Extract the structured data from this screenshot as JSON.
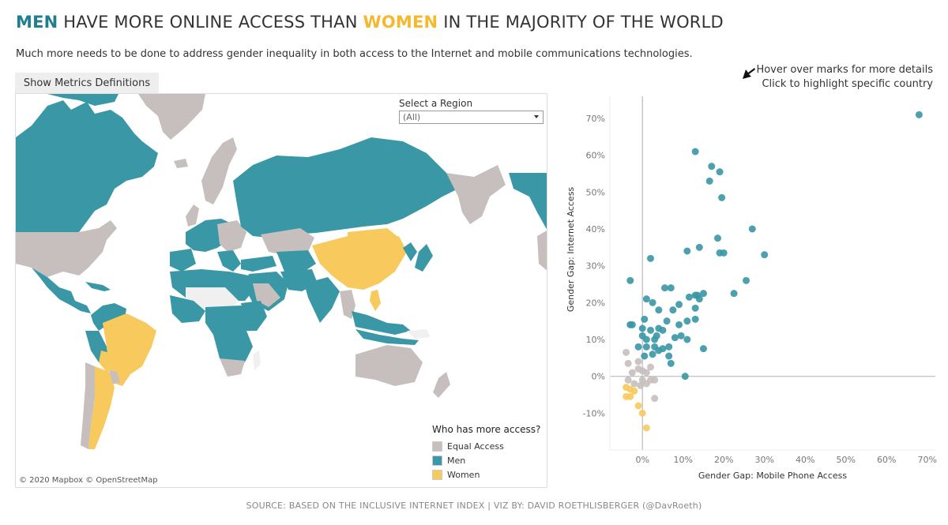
{
  "title": {
    "part1": "MEN",
    "part2": " HAVE MORE ONLINE ACCESS THAN ",
    "part3": "WOMEN",
    "part4": " IN THE MAJORITY OF THE WORLD"
  },
  "subtitle": "Much more needs to be done to address gender inequality in both access to the Internet and mobile communications technologies.",
  "metrics_button": "Show Metrics Definitions",
  "hint": {
    "line1": "Hover over marks for more details",
    "line2": "Click to highlight specific country"
  },
  "region_filter": {
    "label": "Select a Region",
    "value": "(All)"
  },
  "legend": {
    "title": "Who has more access?",
    "items": [
      {
        "label": "Equal Access",
        "color": "#c7bfbd"
      },
      {
        "label": "Men",
        "color": "#3a97a6"
      },
      {
        "label": "Women",
        "color": "#f8c95c"
      }
    ]
  },
  "map_credit": "© 2020 Mapbox  © OpenStreetMap",
  "source": "SOURCE: BASED ON THE INCLUSIVE INTERNET INDEX | VIZ BY: DAVID ROETHLISBERGER (@DavRoeth)",
  "colors": {
    "men": "#3a97a6",
    "women": "#f8c95c",
    "equal": "#c7bfbd",
    "land_nodata": "#f0f0f0"
  },
  "chart_data": {
    "type": "scatter",
    "xlabel": "Gender Gap: Mobile Phone Access",
    "ylabel": "Gender Gap: Internet Access",
    "xlim": [
      -8,
      72
    ],
    "ylim": [
      -20,
      76
    ],
    "xticks": [
      "0%",
      "10%",
      "20%",
      "30%",
      "40%",
      "50%",
      "60%",
      "70%"
    ],
    "xtick_values": [
      0,
      10,
      20,
      30,
      40,
      50,
      60,
      70
    ],
    "yticks": [
      "-10%",
      "0%",
      "10%",
      "20%",
      "30%",
      "40%",
      "50%",
      "60%",
      "70%"
    ],
    "ytick_values": [
      -10,
      0,
      10,
      20,
      30,
      40,
      50,
      60,
      70
    ],
    "series": [
      {
        "name": "Men",
        "color": "#3a97a6",
        "points": [
          [
            68,
            71
          ],
          [
            13,
            61
          ],
          [
            17,
            57
          ],
          [
            19,
            55.5
          ],
          [
            16.5,
            53
          ],
          [
            19.5,
            48.5
          ],
          [
            27,
            40
          ],
          [
            18.5,
            37.5
          ],
          [
            30,
            33
          ],
          [
            19,
            33.5
          ],
          [
            20,
            33.5
          ],
          [
            14,
            35
          ],
          [
            11,
            34
          ],
          [
            2,
            32
          ],
          [
            25.5,
            26
          ],
          [
            -3,
            26
          ],
          [
            22.5,
            22.5
          ],
          [
            13,
            22
          ],
          [
            7,
            24
          ],
          [
            5.5,
            24
          ],
          [
            11.5,
            21.5
          ],
          [
            13.5,
            22
          ],
          [
            14,
            21
          ],
          [
            15,
            22.5
          ],
          [
            9,
            19.5
          ],
          [
            1,
            21
          ],
          [
            2.5,
            20
          ],
          [
            4,
            18
          ],
          [
            0.5,
            15.5
          ],
          [
            7.5,
            18
          ],
          [
            13,
            18.5
          ],
          [
            11,
            15
          ],
          [
            13,
            15.5
          ],
          [
            -3,
            14
          ],
          [
            -2.5,
            14
          ],
          [
            0,
            13
          ],
          [
            2,
            12.5
          ],
          [
            4,
            13
          ],
          [
            6,
            15
          ],
          [
            9,
            14
          ],
          [
            0,
            11
          ],
          [
            1,
            10
          ],
          [
            3,
            10
          ],
          [
            3.5,
            11
          ],
          [
            5,
            12.5
          ],
          [
            8,
            10.5
          ],
          [
            9.5,
            11
          ],
          [
            11,
            10
          ],
          [
            -1,
            8
          ],
          [
            1,
            8
          ],
          [
            3,
            8
          ],
          [
            5,
            7.5
          ],
          [
            6.5,
            8
          ],
          [
            15,
            7.5
          ],
          [
            0.5,
            5.5
          ],
          [
            2.5,
            6
          ],
          [
            4,
            7
          ],
          [
            6.5,
            5.5
          ],
          [
            7,
            3.5
          ],
          [
            10.5,
            0
          ]
        ]
      },
      {
        "name": "Equal Access",
        "color": "#c7bfbd",
        "points": [
          [
            -4,
            6.5
          ],
          [
            -3.5,
            3.5
          ],
          [
            -1,
            4
          ],
          [
            -1,
            2
          ],
          [
            0,
            1.5
          ],
          [
            1,
            1
          ],
          [
            2,
            2.5
          ],
          [
            -2.5,
            1
          ],
          [
            -3.5,
            -1
          ],
          [
            0,
            -1
          ],
          [
            1,
            -2
          ],
          [
            2,
            -1
          ],
          [
            3,
            -1
          ],
          [
            -2,
            -2
          ],
          [
            3,
            -6
          ],
          [
            -0.5,
            -2.5
          ]
        ]
      },
      {
        "name": "Women",
        "color": "#f8c95c",
        "points": [
          [
            -4,
            -3
          ],
          [
            -3,
            -3.5
          ],
          [
            -2,
            -4
          ],
          [
            -4,
            -5.5
          ],
          [
            -3,
            -5.5
          ],
          [
            -1,
            -8
          ],
          [
            0,
            -10
          ],
          [
            1,
            -14
          ]
        ]
      }
    ]
  }
}
